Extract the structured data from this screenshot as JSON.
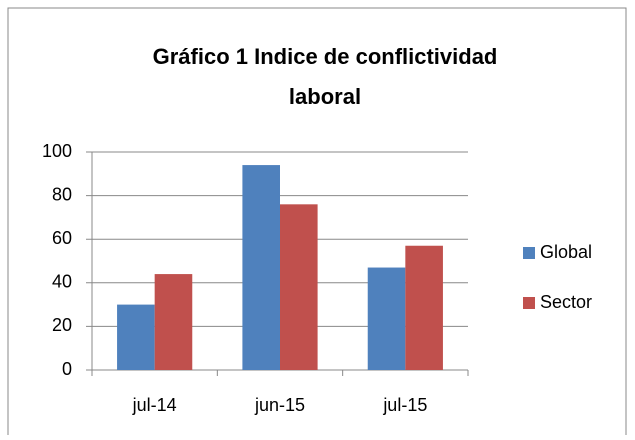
{
  "chart_data": {
    "type": "bar",
    "title_lines": [
      "Gráfico 1 Indice de conflictividad",
      "laboral"
    ],
    "categories": [
      "jul-14",
      "jun-15",
      "jul-15"
    ],
    "series": [
      {
        "name": "Global",
        "color": "#4f81bd",
        "values": [
          30,
          94,
          47
        ]
      },
      {
        "name": "Sector",
        "color": "#c0504d",
        "values": [
          44,
          76,
          57
        ]
      }
    ],
    "ylim": [
      0,
      100
    ],
    "yticks": [
      0,
      20,
      40,
      60,
      80,
      100
    ],
    "grid": true,
    "legend": "right"
  }
}
